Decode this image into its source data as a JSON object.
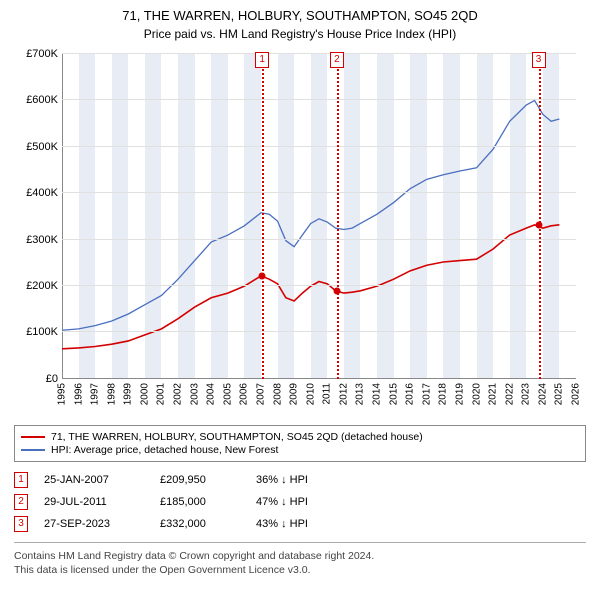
{
  "title": "71, THE WARREN, HOLBURY, SOUTHAMPTON, SO45 2QD",
  "subtitle": "Price paid vs. HM Land Registry's House Price Index (HPI)",
  "chart": {
    "type": "line",
    "background_color": "#ffffff",
    "band_color": "#e8ecf5",
    "grid_color": "#e0e0e0",
    "axis_color": "#888888",
    "x_min": 1995,
    "x_max": 2026,
    "y_min": 0,
    "y_max": 700,
    "y_prefix": "£",
    "y_suffix": "K",
    "y_ticks": [
      0,
      100,
      200,
      300,
      400,
      500,
      600,
      700
    ],
    "x_ticks": [
      1995,
      1996,
      1997,
      1998,
      1999,
      2000,
      2001,
      2002,
      2003,
      2004,
      2005,
      2006,
      2007,
      2008,
      2009,
      2010,
      2011,
      2012,
      2013,
      2014,
      2015,
      2016,
      2017,
      2018,
      2019,
      2020,
      2021,
      2022,
      2023,
      2024,
      2025,
      2026
    ],
    "label_fontsize": 11,
    "series": [
      {
        "name": "price_paid",
        "label": "71, THE WARREN, HOLBURY, SOUTHAMPTON, SO45 2QD (detached house)",
        "color": "#d40000",
        "line_width": 1.6,
        "points": [
          [
            1995,
            65
          ],
          [
            1996,
            67
          ],
          [
            1997,
            70
          ],
          [
            1998,
            75
          ],
          [
            1999,
            82
          ],
          [
            2000,
            95
          ],
          [
            2001,
            108
          ],
          [
            2002,
            130
          ],
          [
            2003,
            155
          ],
          [
            2004,
            175
          ],
          [
            2005,
            185
          ],
          [
            2006,
            200
          ],
          [
            2007,
            222
          ],
          [
            2007.5,
            215
          ],
          [
            2008,
            205
          ],
          [
            2008.5,
            175
          ],
          [
            2009,
            168
          ],
          [
            2009.5,
            185
          ],
          [
            2010,
            200
          ],
          [
            2010.5,
            210
          ],
          [
            2011,
            205
          ],
          [
            2011.5,
            190
          ],
          [
            2012,
            185
          ],
          [
            2012.5,
            187
          ],
          [
            2013,
            190
          ],
          [
            2014,
            200
          ],
          [
            2015,
            215
          ],
          [
            2016,
            233
          ],
          [
            2017,
            245
          ],
          [
            2018,
            252
          ],
          [
            2019,
            255
          ],
          [
            2020,
            258
          ],
          [
            2021,
            280
          ],
          [
            2022,
            310
          ],
          [
            2023,
            325
          ],
          [
            2023.5,
            332
          ],
          [
            2024,
            325
          ],
          [
            2024.5,
            330
          ],
          [
            2025,
            332
          ]
        ]
      },
      {
        "name": "hpi",
        "label": "HPI: Average price, detached house, New Forest",
        "color": "#4a6fbf",
        "line_width": 1.3,
        "points": [
          [
            1995,
            105
          ],
          [
            1996,
            108
          ],
          [
            1997,
            115
          ],
          [
            1998,
            125
          ],
          [
            1999,
            140
          ],
          [
            2000,
            160
          ],
          [
            2001,
            180
          ],
          [
            2002,
            215
          ],
          [
            2003,
            255
          ],
          [
            2004,
            295
          ],
          [
            2005,
            310
          ],
          [
            2006,
            330
          ],
          [
            2007,
            358
          ],
          [
            2007.5,
            355
          ],
          [
            2008,
            340
          ],
          [
            2008.5,
            298
          ],
          [
            2009,
            285
          ],
          [
            2009.5,
            310
          ],
          [
            2010,
            335
          ],
          [
            2010.5,
            345
          ],
          [
            2011,
            338
          ],
          [
            2011.5,
            325
          ],
          [
            2012,
            322
          ],
          [
            2012.5,
            325
          ],
          [
            2013,
            335
          ],
          [
            2014,
            355
          ],
          [
            2015,
            380
          ],
          [
            2016,
            410
          ],
          [
            2017,
            430
          ],
          [
            2018,
            440
          ],
          [
            2019,
            448
          ],
          [
            2020,
            455
          ],
          [
            2021,
            495
          ],
          [
            2022,
            555
          ],
          [
            2023,
            590
          ],
          [
            2023.5,
            600
          ],
          [
            2024,
            570
          ],
          [
            2024.5,
            555
          ],
          [
            2025,
            560
          ]
        ]
      }
    ],
    "markers": [
      {
        "n": "1",
        "x": 2007.07,
        "color": "#d40000"
      },
      {
        "n": "2",
        "x": 2011.58,
        "color": "#d40000"
      },
      {
        "n": "3",
        "x": 2023.74,
        "color": "#d40000"
      }
    ],
    "sale_points_color": "#d40000"
  },
  "legend": {
    "border_color": "#888888"
  },
  "sales": [
    {
      "n": "1",
      "date": "25-JAN-2007",
      "price": "£209,950",
      "diff": "36% ↓ HPI",
      "color": "#d40000"
    },
    {
      "n": "2",
      "date": "29-JUL-2011",
      "price": "£185,000",
      "diff": "47% ↓ HPI",
      "color": "#d40000"
    },
    {
      "n": "3",
      "date": "27-SEP-2023",
      "price": "£332,000",
      "diff": "43% ↓ HPI",
      "color": "#d40000"
    }
  ],
  "footer": {
    "line1": "Contains HM Land Registry data © Crown copyright and database right 2024.",
    "line2": "This data is licensed under the Open Government Licence v3.0."
  }
}
